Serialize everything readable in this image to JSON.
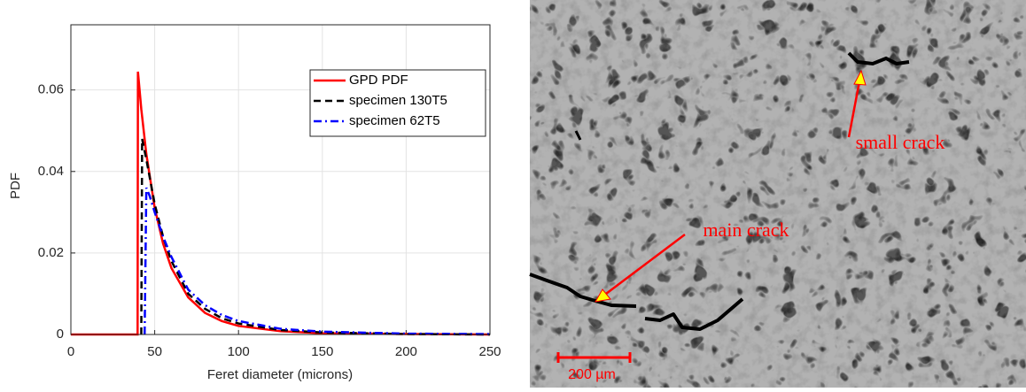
{
  "chart_data": {
    "type": "line",
    "xlabel": "Feret diameter (microns)",
    "ylabel": "PDF",
    "xlim": [
      0,
      250
    ],
    "ylim": [
      0,
      0.076
    ],
    "xticks": [
      0,
      50,
      100,
      150,
      200,
      250
    ],
    "yticks": [
      0,
      0.02,
      0.04,
      0.06
    ],
    "grid": true,
    "legend": "upper right",
    "series": [
      {
        "name": "GPD PDF",
        "color": "#ff0000",
        "dash": "solid",
        "x": [
          0,
          39.8,
          40,
          42,
          45,
          50,
          55,
          60,
          70,
          80,
          90,
          100,
          125,
          150,
          200,
          250
        ],
        "values": [
          0,
          0,
          0.0645,
          0.0553,
          0.0443,
          0.0311,
          0.0223,
          0.0163,
          0.0091,
          0.0053,
          0.0033,
          0.0021,
          0.0008,
          0.0003,
          0.0001,
          0
        ]
      },
      {
        "name": "specimen 130T5",
        "color": "#000000",
        "dash": "dashed",
        "x": [
          42,
          42.5,
          45,
          50,
          55,
          60,
          70,
          80,
          90,
          100,
          125,
          150,
          200,
          250
        ],
        "values": [
          0,
          0.048,
          0.043,
          0.032,
          0.024,
          0.018,
          0.01,
          0.0063,
          0.004,
          0.0027,
          0.0011,
          0.0005,
          0.0001,
          0
        ]
      },
      {
        "name": "specimen 62T5",
        "color": "#0000ff",
        "dash": "dashdot",
        "x": [
          44,
          45,
          47,
          50,
          55,
          60,
          70,
          80,
          90,
          100,
          125,
          150,
          200,
          250
        ],
        "values": [
          0,
          0.036,
          0.034,
          0.03,
          0.024,
          0.019,
          0.011,
          0.0072,
          0.0048,
          0.0033,
          0.0014,
          0.0007,
          0.0002,
          0.0001
        ]
      }
    ]
  },
  "image": {
    "annotations": [
      "small crack",
      "main crack"
    ],
    "scale_bar": "200 µm"
  }
}
